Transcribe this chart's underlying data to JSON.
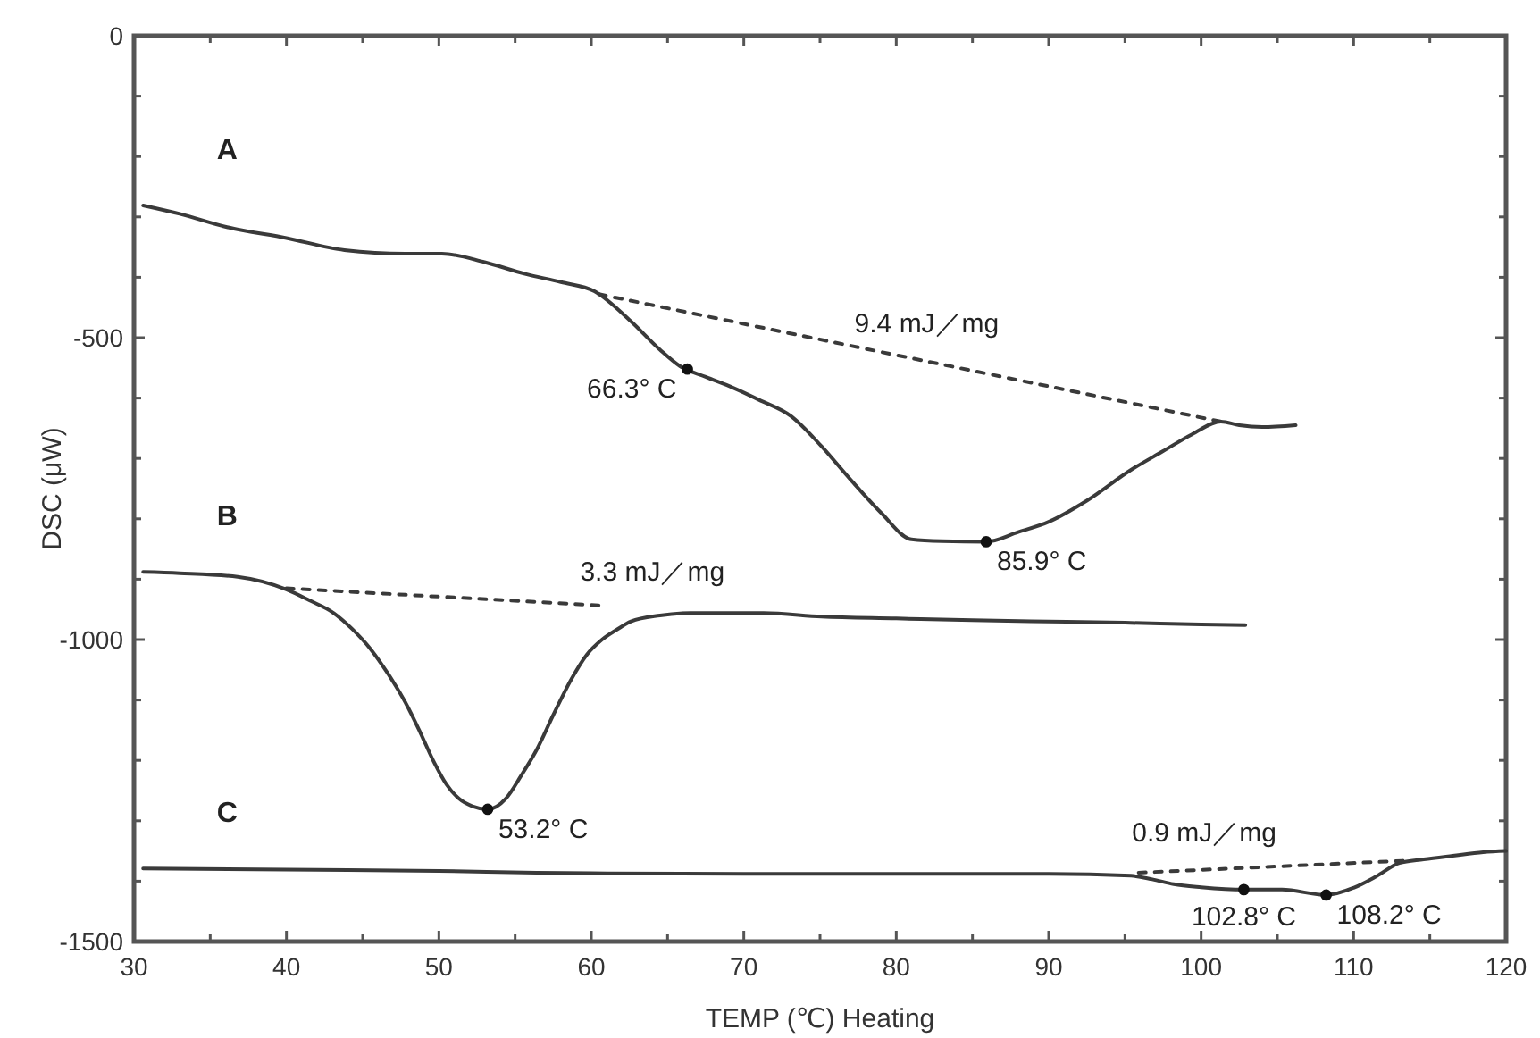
{
  "chart_data": {
    "type": "line",
    "xlabel": "TEMP (℃) Heating",
    "ylabel": "DSC (μW)",
    "xlim": [
      30,
      120
    ],
    "ylim": [
      -1500,
      0
    ],
    "xticks": [
      30,
      {
        "value": 35,
        "label": null
      },
      40,
      {
        "value": 45,
        "label": null
      },
      50,
      {
        "value": 55,
        "label": null
      },
      60,
      {
        "value": 65,
        "label": null
      },
      70,
      {
        "value": 75,
        "label": null
      },
      80,
      {
        "value": 85,
        "label": null
      },
      90,
      {
        "value": 95,
        "label": null
      },
      100,
      {
        "value": 105,
        "label": null
      },
      110,
      {
        "value": 115,
        "label": null
      },
      120
    ],
    "yticks": [
      -1500,
      {
        "value": -1400,
        "label": null
      },
      {
        "value": -1300,
        "label": null
      },
      {
        "value": -1200,
        "label": null
      },
      {
        "value": -1100,
        "label": null
      },
      -1000,
      {
        "value": -900,
        "label": null
      },
      {
        "value": -800,
        "label": null
      },
      {
        "value": -700,
        "label": null
      },
      {
        "value": -600,
        "label": null
      },
      -500,
      {
        "value": -400,
        "label": null
      },
      {
        "value": -300,
        "label": null
      },
      {
        "value": -200,
        "label": null
      },
      {
        "value": -100,
        "label": null
      },
      0
    ],
    "line_style": "solid",
    "marker": "none",
    "series": [
      {
        "name": "A",
        "color": "#3a3a3a",
        "x": [
          30.6,
          33,
          36.1,
          40,
          43.8,
          47.8,
          50.2,
          53,
          55.6,
          58,
          60.2,
          62.6,
          64.5,
          65.8,
          67.5,
          69.3,
          71,
          73.1,
          75.1,
          77,
          79,
          81,
          83,
          85.9,
          88,
          90,
          92.5,
          95.4,
          97.5,
          99.4,
          101.3,
          102.5,
          104,
          106.2
        ],
        "values": [
          -281,
          -295,
          -317,
          -335,
          -355,
          -361,
          -361,
          -375,
          -394,
          -408,
          -423,
          -473,
          -520,
          -547,
          -565,
          -583,
          -603,
          -630,
          -680,
          -735,
          -790,
          -834,
          -837,
          -838,
          -822,
          -805,
          -770,
          -719,
          -688,
          -660,
          -639,
          -645,
          -648,
          -645
        ]
      },
      {
        "name": "B",
        "color": "#3a3a3a",
        "x": [
          30.6,
          33,
          36.8,
          40,
          41.5,
          43.1,
          44.3,
          45.5,
          46.7,
          47.8,
          48.8,
          49.7,
          50.5,
          51.3,
          52.2,
          53.2,
          54.4,
          55.4,
          56.4,
          57.5,
          58.7,
          59.7,
          60.7,
          61.7,
          62.6,
          64.5,
          66.5,
          71.3,
          75.1,
          80,
          85,
          90,
          95,
          100,
          102.9
        ],
        "values": [
          -888,
          -890,
          -896,
          -917,
          -935,
          -956,
          -982,
          -1015,
          -1058,
          -1104,
          -1155,
          -1204,
          -1240,
          -1263,
          -1276,
          -1281,
          -1263,
          -1225,
          -1183,
          -1125,
          -1065,
          -1025,
          -1000,
          -983,
          -970,
          -960,
          -956,
          -956,
          -962,
          -965,
          -968,
          -970,
          -972,
          -975,
          -976
        ]
      },
      {
        "name": "C",
        "color": "#3a3a3a",
        "x": [
          30.6,
          40,
          50,
          56.4,
          60,
          70,
          80,
          90,
          95.4,
          96.8,
          98.2,
          100,
          102.8,
          105.3,
          108.2,
          110,
          111.5,
          113,
          114.6,
          116.5,
          118.5,
          120
        ],
        "values": [
          -1379,
          -1381,
          -1383,
          -1386,
          -1387,
          -1388,
          -1388,
          -1388,
          -1391,
          -1397,
          -1405,
          -1410,
          -1414,
          -1414,
          -1423,
          -1411,
          -1392,
          -1370,
          -1364,
          -1358,
          -1352,
          -1350
        ]
      },
      {
        "type": "line",
        "line_style": "dashed",
        "color": "#3a3a3a",
        "x": [
          60.5,
          101.3
        ],
        "values": [
          -428,
          -639
        ]
      },
      {
        "type": "line",
        "line_style": "dashed",
        "color": "#3a3a3a",
        "x": [
          40,
          61
        ],
        "values": [
          -915,
          -944
        ]
      },
      {
        "type": "line",
        "line_style": "dashed",
        "color": "#3a3a3a",
        "x": [
          95.9,
          113.5
        ],
        "values": [
          -1386,
          -1366
        ]
      },
      {
        "type": "scatter",
        "marker": "circle",
        "color": "#111111",
        "x": [
          66.3,
          85.9,
          53.2,
          102.8,
          108.2
        ],
        "values": [
          -552,
          -838,
          -1281,
          -1414,
          -1423
        ]
      }
    ],
    "annotations": [
      {
        "text": "9.4 mJ／mg",
        "x": 82,
        "y": -539
      },
      {
        "text": "66.3° C",
        "x": 66.3,
        "y": -552
      },
      {
        "text": "85.9° C",
        "x": 85.9,
        "y": -838
      },
      {
        "text": "3.3 mJ／mg",
        "x": 64,
        "y": -950
      },
      {
        "text": "53.2° C",
        "x": 53.2,
        "y": -1281
      },
      {
        "text": "0.9 mJ／mg",
        "x": 100.2,
        "y": -1381
      },
      {
        "text": "102.8° C",
        "x": 102.8,
        "y": -1414
      },
      {
        "text": "108.2° C",
        "x": 108.2,
        "y": -1423
      }
    ]
  }
}
